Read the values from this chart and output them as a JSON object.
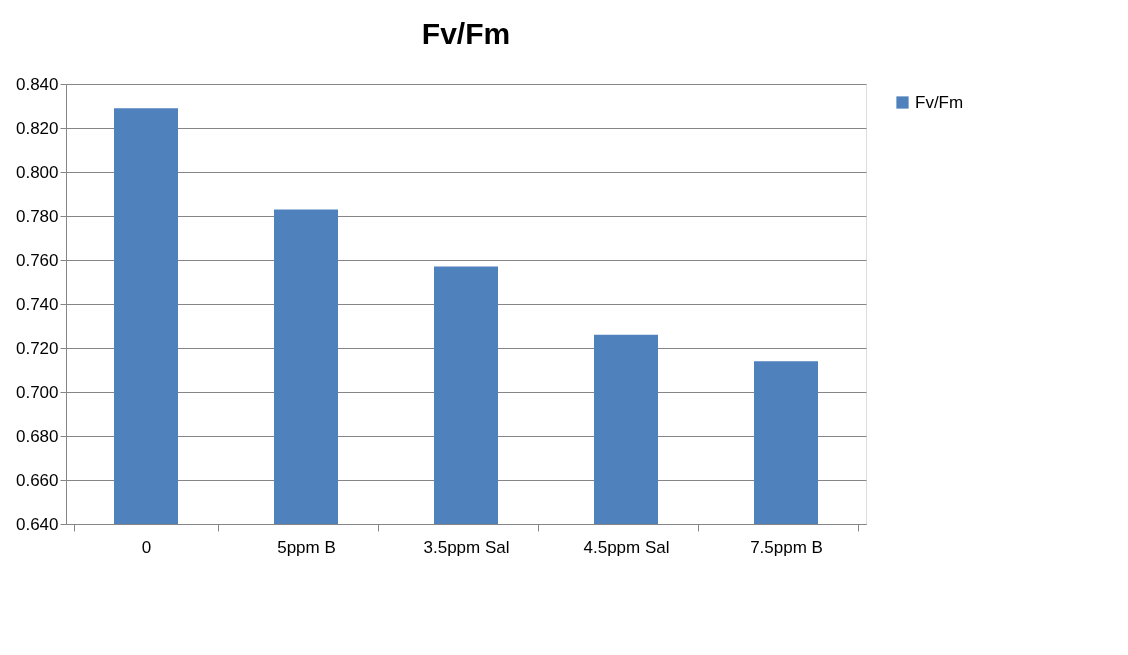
{
  "chart_data": {
    "type": "bar",
    "title": "Fv/Fm",
    "categories": [
      "0",
      "5ppm B",
      "3.5ppm Sal",
      "4.5ppm Sal",
      "7.5ppm B"
    ],
    "series": [
      {
        "name": "Fv/Fm",
        "color": "#4f81bd",
        "values": [
          0.829,
          0.783,
          0.757,
          0.726,
          0.714
        ]
      }
    ],
    "ylim": [
      0.64,
      0.84
    ],
    "yticks": [
      {
        "value": 0.64,
        "label": "0.640"
      },
      {
        "value": 0.66,
        "label": "0.660"
      },
      {
        "value": 0.68,
        "label": "0.680"
      },
      {
        "value": 0.7,
        "label": "0.700"
      },
      {
        "value": 0.72,
        "label": "0.720"
      },
      {
        "value": 0.74,
        "label": "0.740"
      },
      {
        "value": 0.76,
        "label": "0.760"
      },
      {
        "value": 0.78,
        "label": "0.780"
      },
      {
        "value": 0.8,
        "label": "0.800"
      },
      {
        "value": 0.82,
        "label": "0.820"
      },
      {
        "value": 0.84,
        "label": "0.840"
      }
    ],
    "grid": "y",
    "legend": "right"
  }
}
